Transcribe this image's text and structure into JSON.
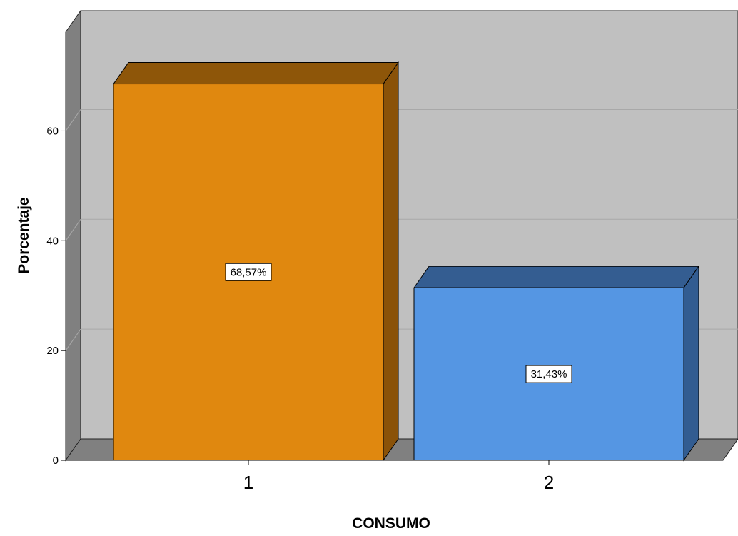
{
  "chart_data": {
    "type": "bar",
    "title": "",
    "xlabel": "CONSUMO",
    "ylabel": "Porcentaje",
    "categories": [
      "1",
      "2"
    ],
    "values": [
      68.57,
      31.43
    ],
    "data_labels": [
      "68,57%",
      "31,43%"
    ],
    "ylim": [
      0,
      78
    ],
    "yticks": [
      0,
      20,
      40,
      60
    ],
    "ytick_labels": [
      "0",
      "20",
      "40",
      "60"
    ],
    "grid": true,
    "legend": "none",
    "bar_colors": [
      "#E0880F",
      "#5596E3"
    ],
    "bar_side_colors": [
      "#8A5208",
      "#325C91"
    ],
    "bar_top_colors": [
      "#8E5609",
      "#345D91"
    ],
    "wall_color": "#C0C0C0",
    "floor_color": "#808080",
    "side_wall_color": "#808080"
  }
}
